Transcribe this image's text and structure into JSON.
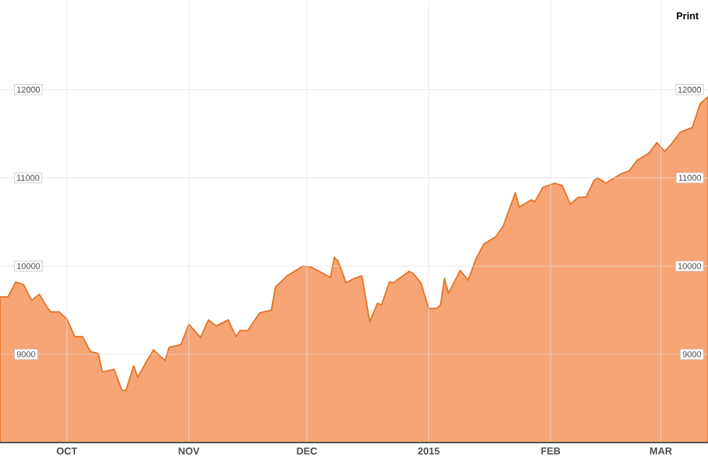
{
  "chart_data": {
    "type": "area",
    "x": [
      "2014-09-14",
      "2014-09-16",
      "2014-09-18",
      "2014-09-20",
      "2014-09-22",
      "2014-09-24",
      "2014-09-26",
      "2014-09-27",
      "2014-09-29",
      "2014-10-01",
      "2014-10-03",
      "2014-10-05",
      "2014-10-07",
      "2014-10-09",
      "2014-10-10",
      "2014-10-13",
      "2014-10-15",
      "2014-10-16",
      "2014-10-18",
      "2014-10-19",
      "2014-10-21",
      "2014-10-23",
      "2014-10-26",
      "2014-10-27",
      "2014-10-30",
      "2014-11-01",
      "2014-11-04",
      "2014-11-06",
      "2014-11-08",
      "2014-11-11",
      "2014-11-13",
      "2014-11-14",
      "2014-11-16",
      "2014-11-19",
      "2014-11-22",
      "2014-11-23",
      "2014-11-26",
      "2014-11-30",
      "2014-12-02",
      "2014-12-05",
      "2014-12-07",
      "2014-12-08",
      "2014-12-09",
      "2014-12-11",
      "2014-12-13",
      "2014-12-15",
      "2014-12-17",
      "2014-12-19",
      "2014-12-20",
      "2014-12-22",
      "2014-12-23",
      "2014-12-27",
      "2014-12-28",
      "2014-12-30",
      "2015-01-01",
      "2015-01-03",
      "2015-01-04",
      "2015-01-05",
      "2015-01-06",
      "2015-01-09",
      "2015-01-11",
      "2015-01-13",
      "2015-01-15",
      "2015-01-18",
      "2015-01-20",
      "2015-01-23",
      "2015-01-24",
      "2015-01-27",
      "2015-01-28",
      "2015-01-30",
      "2015-02-02",
      "2015-02-04",
      "2015-02-06",
      "2015-02-08",
      "2015-02-10",
      "2015-02-12",
      "2015-02-13",
      "2015-02-15",
      "2015-02-19",
      "2015-02-21",
      "2015-02-23",
      "2015-02-26",
      "2015-02-28",
      "2015-03-02",
      "2015-03-04",
      "2015-03-06",
      "2015-03-09",
      "2015-03-11",
      "2015-03-13"
    ],
    "values": [
      9650,
      9650,
      9820,
      9790,
      9610,
      9680,
      9530,
      9480,
      9480,
      9400,
      9200,
      9200,
      9030,
      9010,
      8800,
      8830,
      8590,
      8590,
      8870,
      8740,
      8900,
      9050,
      8930,
      9080,
      9110,
      9340,
      9190,
      9390,
      9320,
      9390,
      9200,
      9270,
      9270,
      9470,
      9500,
      9760,
      9890,
      10000,
      9990,
      9920,
      9870,
      10100,
      10050,
      9810,
      9860,
      9890,
      9370,
      9580,
      9560,
      9820,
      9810,
      9940,
      9920,
      9810,
      9520,
      9520,
      9560,
      9860,
      9690,
      9950,
      9840,
      10080,
      10250,
      10330,
      10460,
      10830,
      10670,
      10750,
      10730,
      10890,
      10940,
      10910,
      10700,
      10780,
      10780,
      10970,
      11000,
      10940,
      11050,
      11080,
      11200,
      11280,
      11400,
      11300,
      11400,
      11520,
      11570,
      11840,
      11920
    ],
    "color": "#f7a574",
    "xlim": [
      "2014-09-14",
      "2015-03-13"
    ],
    "xticks": [
      {
        "value": "2014-10-01",
        "label": "OCT"
      },
      {
        "value": "2014-11-01",
        "label": "NOV"
      },
      {
        "value": "2014-12-01",
        "label": "DEC"
      },
      {
        "value": "2015-01-01",
        "label": "2015"
      },
      {
        "value": "2015-02-01",
        "label": "FEB"
      },
      {
        "value": "2015-03-01",
        "label": "MAR"
      }
    ],
    "ylim": [
      8000,
      13000
    ],
    "yticks": [
      9000,
      10000,
      11000,
      12000
    ],
    "y2lim": [
      8000,
      13000
    ],
    "y2ticks": [
      9000,
      10000,
      11000,
      12000
    ],
    "grid": true,
    "annotations": [
      "Print"
    ]
  }
}
